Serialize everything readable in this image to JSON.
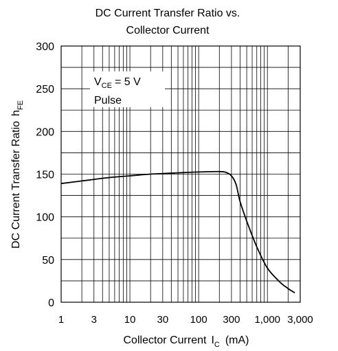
{
  "chart_data": {
    "type": "line",
    "title_line1": "DC Current Transfer Ratio vs.",
    "title_line2": "Collector Current",
    "xlabel": "Collector Current",
    "xlabel_symbol": "I",
    "xlabel_subscript": "C",
    "xlabel_unit": "(mA)",
    "ylabel": "DC Current Transfer Ratio",
    "ylabel_symbol": "h",
    "ylabel_subscript": "FE",
    "x_scale": "log",
    "xlim": [
      1,
      3000
    ],
    "ylim": [
      0,
      300
    ],
    "grid": true,
    "x_ticks": [
      1,
      3,
      10,
      30,
      100,
      300,
      1000,
      3000
    ],
    "x_tick_labels": [
      "1",
      "3",
      "10",
      "30",
      "100",
      "300",
      "1,000",
      "3,000"
    ],
    "y_ticks": [
      0,
      50,
      100,
      150,
      200,
      250,
      300
    ],
    "y_tick_labels": [
      "0",
      "50",
      "100",
      "150",
      "200",
      "250",
      "300"
    ],
    "annotation": {
      "symbol": "V",
      "subscript": "CE",
      "value": "= 5 V",
      "line2": "Pulse"
    },
    "series": [
      {
        "x": [
          1,
          2,
          5,
          10,
          20,
          50,
          100,
          200,
          250,
          300,
          350,
          400,
          500,
          700,
          1000,
          1500,
          2000,
          2500
        ],
        "y": [
          139,
          142,
          146,
          148,
          150,
          151.5,
          152.5,
          153,
          152,
          148,
          138,
          118,
          95,
          65,
          40,
          24,
          16,
          11
        ]
      }
    ]
  }
}
